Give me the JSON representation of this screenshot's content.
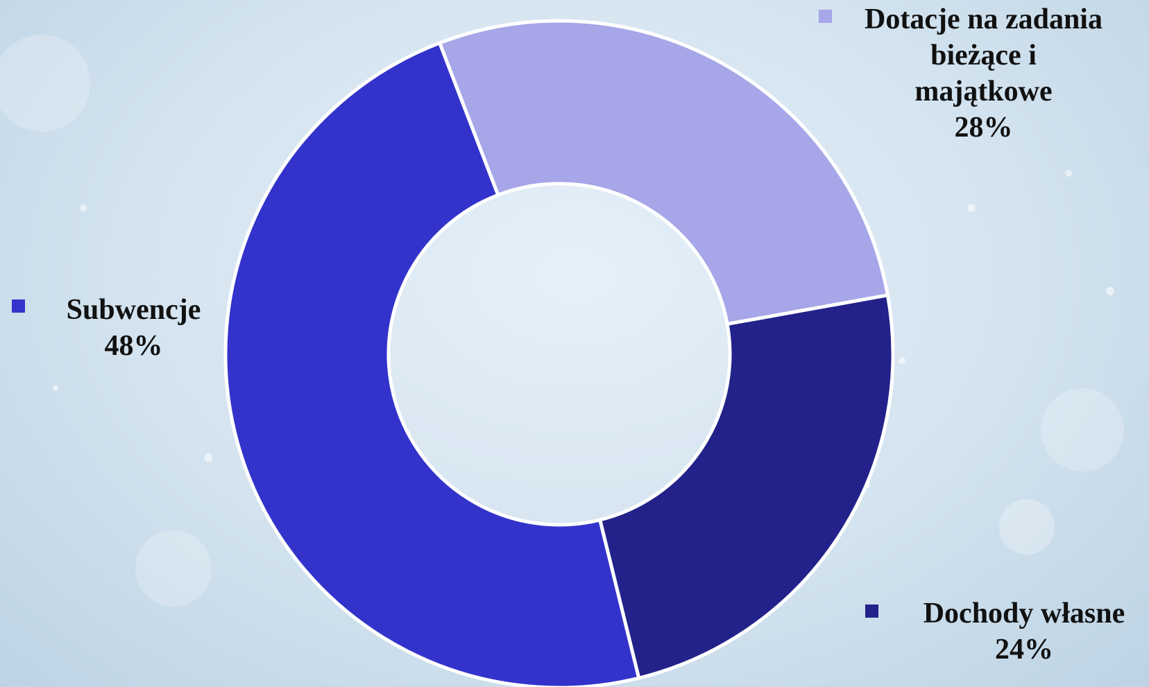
{
  "chart_data": {
    "type": "pie",
    "categories": [
      "Dotacje na zadania bieżące i majątkowe",
      "Dochody własne",
      "Subwencje"
    ],
    "values": [
      28,
      24,
      48
    ],
    "value_labels": [
      "28%",
      "24%",
      "48%"
    ],
    "colors": [
      "#a6a6e8",
      "#22228a",
      "#3333cc"
    ],
    "donut": true
  }
}
